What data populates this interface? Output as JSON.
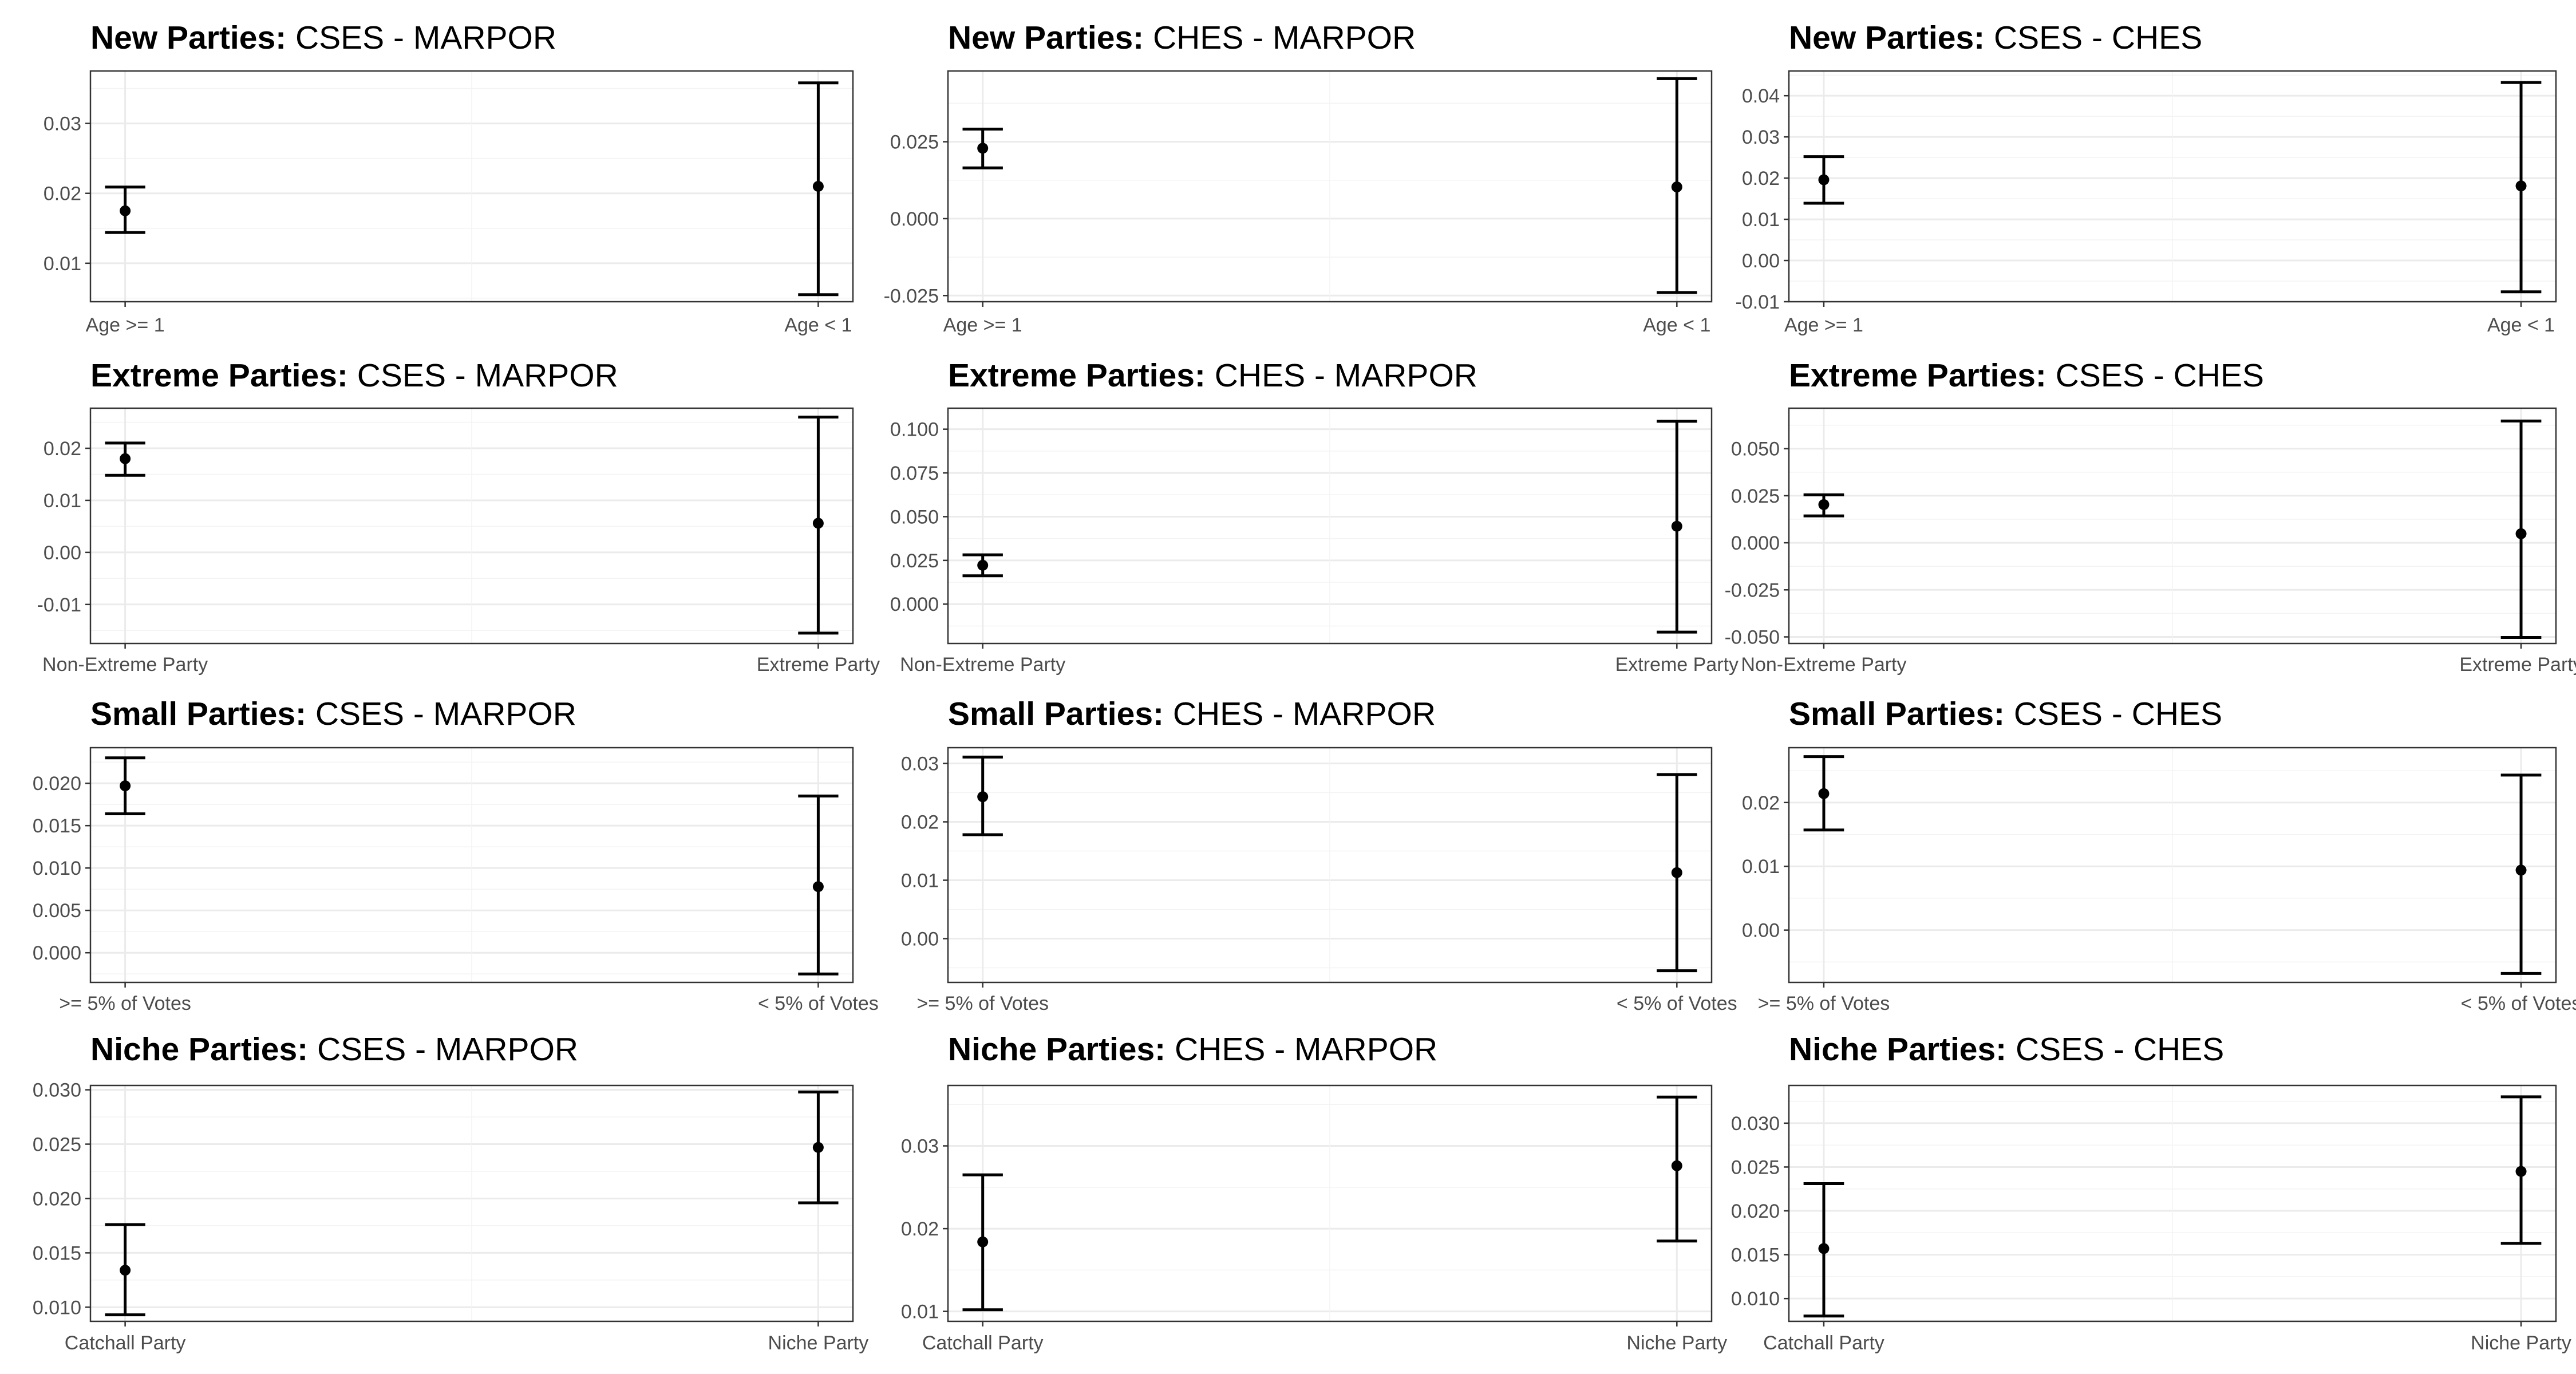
{
  "chart_data": [
    {
      "type": "errorbar",
      "title_bold": "New Parties:",
      "title_rest": " CSES - MARPOR",
      "categories": [
        "Age >= 1",
        "Age < 1"
      ],
      "points": [
        {
          "category": "Age >= 1",
          "estimate": 0.0175,
          "lower": 0.0144,
          "upper": 0.0209
        },
        {
          "category": "Age < 1",
          "estimate": 0.021,
          "lower": 0.0055,
          "upper": 0.0358
        }
      ],
      "ylim": [
        0.0045,
        0.0375
      ],
      "yticks": [
        0.01,
        0.02,
        0.03
      ],
      "yticklabels": [
        "0.01",
        "0.02",
        "0.03"
      ]
    },
    {
      "type": "errorbar",
      "title_bold": "New Parties:",
      "title_rest": " CHES - MARPOR",
      "categories": [
        "Age >= 1",
        "Age < 1"
      ],
      "points": [
        {
          "category": "Age >= 1",
          "estimate": 0.0229,
          "lower": 0.0165,
          "upper": 0.0291
        },
        {
          "category": "Age < 1",
          "estimate": 0.0103,
          "lower": -0.024,
          "upper": 0.0455
        }
      ],
      "ylim": [
        -0.027,
        0.048
      ],
      "yticks": [
        -0.025,
        0.0,
        0.025
      ],
      "yticklabels": [
        "-0.025",
        "0.000",
        "0.025"
      ]
    },
    {
      "type": "errorbar",
      "title_bold": "New Parties:",
      "title_rest": " CSES - CHES",
      "categories": [
        "Age >= 1",
        "Age < 1"
      ],
      "points": [
        {
          "category": "Age >= 1",
          "estimate": 0.0196,
          "lower": 0.0139,
          "upper": 0.0252
        },
        {
          "category": "Age < 1",
          "estimate": 0.0181,
          "lower": -0.0076,
          "upper": 0.0432
        }
      ],
      "ylim": [
        -0.01,
        0.046
      ],
      "yticks": [
        -0.01,
        0.0,
        0.01,
        0.02,
        0.03,
        0.04
      ],
      "yticklabels": [
        "-0.01",
        "0.00",
        "0.01",
        "0.02",
        "0.03",
        "0.04"
      ]
    },
    {
      "type": "errorbar",
      "title_bold": "Extreme Parties:",
      "title_rest": " CSES - MARPOR",
      "categories": [
        "Non-Extreme Party",
        "Extreme Party"
      ],
      "points": [
        {
          "category": "Non-Extreme Party",
          "estimate": 0.018,
          "lower": 0.0148,
          "upper": 0.021
        },
        {
          "category": "Extreme Party",
          "estimate": 0.0056,
          "lower": -0.0155,
          "upper": 0.026
        }
      ],
      "ylim": [
        -0.0175,
        0.0277
      ],
      "yticks": [
        -0.01,
        0.0,
        0.01,
        0.02
      ],
      "yticklabels": [
        "-0.01",
        "0.00",
        "0.01",
        "0.02"
      ]
    },
    {
      "type": "errorbar",
      "title_bold": "Extreme Parties:",
      "title_rest": " CHES - MARPOR",
      "categories": [
        "Non-Extreme Party",
        "Extreme Party"
      ],
      "points": [
        {
          "category": "Non-Extreme Party",
          "estimate": 0.0222,
          "lower": 0.0162,
          "upper": 0.0282
        },
        {
          "category": "Extreme Party",
          "estimate": 0.0445,
          "lower": -0.016,
          "upper": 0.1045
        }
      ],
      "ylim": [
        -0.0225,
        0.112
      ],
      "yticks": [
        0.0,
        0.025,
        0.05,
        0.075,
        0.1
      ],
      "yticklabels": [
        "0.000",
        "0.025",
        "0.050",
        "0.075",
        "0.100"
      ]
    },
    {
      "type": "errorbar",
      "title_bold": "Extreme Parties:",
      "title_rest": " CSES - CHES",
      "categories": [
        "Non-Extreme Party",
        "Extreme Party"
      ],
      "points": [
        {
          "category": "Non-Extreme Party",
          "estimate": 0.0203,
          "lower": 0.0143,
          "upper": 0.0255
        },
        {
          "category": "Extreme Party",
          "estimate": 0.0048,
          "lower": -0.0503,
          "upper": 0.0647
        }
      ],
      "ylim": [
        -0.0535,
        0.0715
      ],
      "yticks": [
        -0.05,
        -0.025,
        0.0,
        0.025,
        0.05
      ],
      "yticklabels": [
        "-0.050",
        "-0.025",
        "0.000",
        "0.025",
        "0.050"
      ]
    },
    {
      "type": "errorbar",
      "title_bold": "Small Parties:",
      "title_rest": " CSES - MARPOR",
      "categories": [
        ">= 5% of Votes",
        "< 5% of Votes"
      ],
      "points": [
        {
          "category": ">= 5% of Votes",
          "estimate": 0.0197,
          "lower": 0.0164,
          "upper": 0.023
        },
        {
          "category": "< 5% of Votes",
          "estimate": 0.0078,
          "lower": -0.0025,
          "upper": 0.0185
        }
      ],
      "ylim": [
        -0.0035,
        0.0242
      ],
      "yticks": [
        0.0,
        0.005,
        0.01,
        0.015,
        0.02
      ],
      "yticklabels": [
        "0.000",
        "0.005",
        "0.010",
        "0.015",
        "0.020"
      ]
    },
    {
      "type": "errorbar",
      "title_bold": "Small Parties:",
      "title_rest": " CHES - MARPOR",
      "categories": [
        ">= 5% of Votes",
        "< 5% of Votes"
      ],
      "points": [
        {
          "category": ">= 5% of Votes",
          "estimate": 0.0243,
          "lower": 0.0178,
          "upper": 0.0311
        },
        {
          "category": "< 5% of Votes",
          "estimate": 0.0113,
          "lower": -0.0055,
          "upper": 0.0281
        }
      ],
      "ylim": [
        -0.0075,
        0.0327
      ],
      "yticks": [
        0.0,
        0.01,
        0.02,
        0.03
      ],
      "yticklabels": [
        "0.00",
        "0.01",
        "0.02",
        "0.03"
      ]
    },
    {
      "type": "errorbar",
      "title_bold": "Small Parties:",
      "title_rest": " CSES - CHES",
      "categories": [
        ">= 5% of Votes",
        "< 5% of Votes"
      ],
      "points": [
        {
          "category": ">= 5% of Votes",
          "estimate": 0.0214,
          "lower": 0.0157,
          "upper": 0.0272
        },
        {
          "category": "< 5% of Votes",
          "estimate": 0.0094,
          "lower": -0.0068,
          "upper": 0.0243
        }
      ],
      "ylim": [
        -0.0082,
        0.0286
      ],
      "yticks": [
        0.0,
        0.01,
        0.02
      ],
      "yticklabels": [
        "0.00",
        "0.01",
        "0.02"
      ]
    },
    {
      "type": "errorbar",
      "title_bold": "Niche Parties:",
      "title_rest": " CSES - MARPOR",
      "categories": [
        "Catchall Party",
        "Niche Party"
      ],
      "points": [
        {
          "category": "Catchall Party",
          "estimate": 0.0134,
          "lower": 0.0093,
          "upper": 0.0176
        },
        {
          "category": "Niche Party",
          "estimate": 0.0247,
          "lower": 0.0196,
          "upper": 0.0298
        }
      ],
      "ylim": [
        0.0087,
        0.0304
      ],
      "yticks": [
        0.01,
        0.015,
        0.02,
        0.025,
        0.03
      ],
      "yticklabels": [
        "0.010",
        "0.015",
        "0.020",
        "0.025",
        "0.030"
      ]
    },
    {
      "type": "errorbar",
      "title_bold": "Niche Parties:",
      "title_rest": " CHES - MARPOR",
      "categories": [
        "Catchall Party",
        "Niche Party"
      ],
      "points": [
        {
          "category": "Catchall Party",
          "estimate": 0.0184,
          "lower": 0.0102,
          "upper": 0.0265
        },
        {
          "category": "Niche Party",
          "estimate": 0.0276,
          "lower": 0.0185,
          "upper": 0.0359
        }
      ],
      "ylim": [
        0.0088,
        0.0373
      ],
      "yticks": [
        0.01,
        0.02,
        0.03
      ],
      "yticklabels": [
        "0.01",
        "0.02",
        "0.03"
      ]
    },
    {
      "type": "errorbar",
      "title_bold": "Niche Parties:",
      "title_rest": " CSES - CHES",
      "categories": [
        "Catchall Party",
        "Niche Party"
      ],
      "points": [
        {
          "category": "Catchall Party",
          "estimate": 0.0157,
          "lower": 0.008,
          "upper": 0.0231
        },
        {
          "category": "Niche Party",
          "estimate": 0.0245,
          "lower": 0.0163,
          "upper": 0.033
        }
      ],
      "ylim": [
        0.0074,
        0.0343
      ],
      "yticks": [
        0.01,
        0.015,
        0.02,
        0.025,
        0.03
      ],
      "yticklabels": [
        "0.010",
        "0.015",
        "0.020",
        "0.025",
        "0.030"
      ]
    }
  ]
}
